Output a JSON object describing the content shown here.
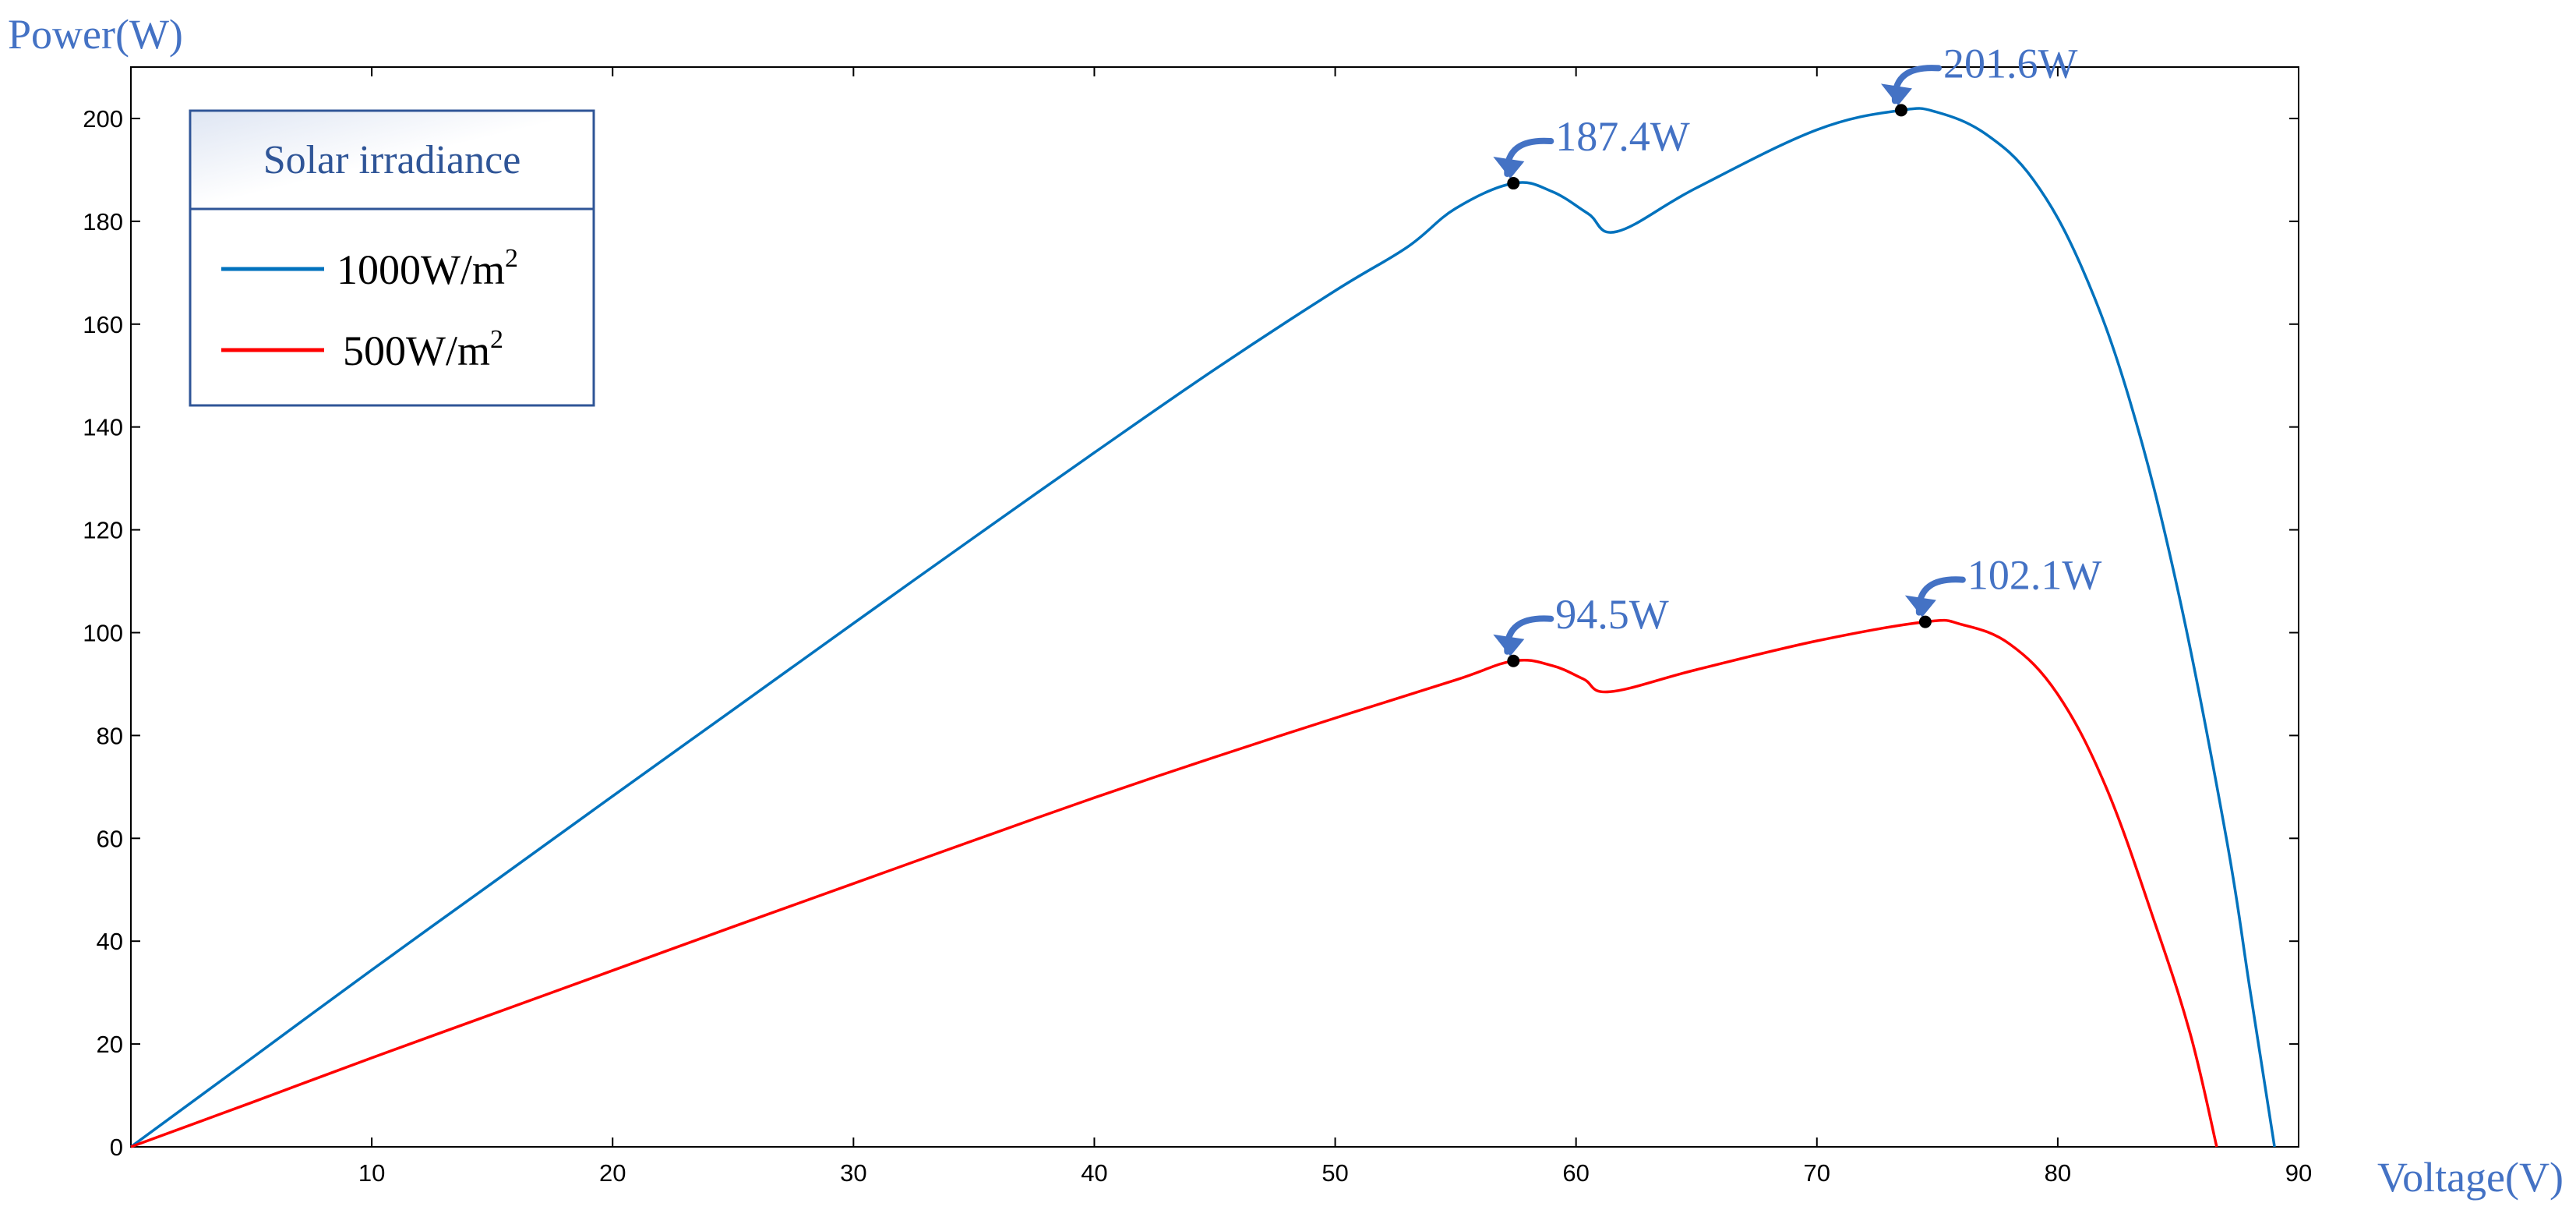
{
  "chart_data": {
    "type": "line",
    "xlabel": "Voltage(V)",
    "ylabel": "Power(W)",
    "xlim": [
      0,
      90
    ],
    "ylim": [
      0,
      210
    ],
    "xticks": [
      10,
      20,
      30,
      40,
      50,
      60,
      70,
      80,
      90
    ],
    "yticks": [
      0,
      20,
      40,
      60,
      80,
      100,
      120,
      140,
      160,
      180,
      200
    ],
    "grid": false,
    "legend": {
      "title": "Solar irradiance",
      "placement": "top-left",
      "entries": [
        {
          "label": "1000W/m",
          "sup": "2"
        },
        {
          "label": "500W/m",
          "sup": "2"
        }
      ]
    },
    "series": [
      {
        "name": "1000W/m2",
        "color": "#0072BD",
        "points": [
          [
            0,
            0
          ],
          [
            5,
            17.2
          ],
          [
            10,
            34.4
          ],
          [
            15,
            51.3
          ],
          [
            20,
            68.2
          ],
          [
            25,
            85
          ],
          [
            30,
            101.8
          ],
          [
            35,
            118.5
          ],
          [
            40,
            135
          ],
          [
            45,
            151.2
          ],
          [
            50,
            166.5
          ],
          [
            53,
            175
          ],
          [
            55,
            182.5
          ],
          [
            57.4,
            187.4
          ],
          [
            59,
            185.8
          ],
          [
            60.5,
            181.5
          ],
          [
            61.7,
            178
          ],
          [
            65,
            186.5
          ],
          [
            70,
            197.8
          ],
          [
            73.5,
            201.6
          ],
          [
            75,
            201.2
          ],
          [
            77,
            197
          ],
          [
            79,
            188
          ],
          [
            81,
            171
          ],
          [
            83,
            145
          ],
          [
            85,
            108
          ],
          [
            87,
            60
          ],
          [
            88,
            30
          ],
          [
            89,
            0
          ]
        ]
      },
      {
        "name": "500W/m2",
        "color": "#FF0000",
        "points": [
          [
            0,
            0
          ],
          [
            5,
            8.6
          ],
          [
            10,
            17.3
          ],
          [
            15,
            25.8
          ],
          [
            20,
            34.3
          ],
          [
            25,
            42.8
          ],
          [
            30,
            51.2
          ],
          [
            35,
            59.6
          ],
          [
            40,
            67.9
          ],
          [
            45,
            75.8
          ],
          [
            50,
            83.4
          ],
          [
            55,
            90.8
          ],
          [
            57.4,
            94.5
          ],
          [
            59,
            93.6
          ],
          [
            60.3,
            91
          ],
          [
            61.4,
            88.5
          ],
          [
            65,
            92.8
          ],
          [
            70,
            98.4
          ],
          [
            74.5,
            102.1
          ],
          [
            76,
            101.6
          ],
          [
            78,
            97.8
          ],
          [
            80,
            88
          ],
          [
            82,
            70
          ],
          [
            84,
            44
          ],
          [
            85.5,
            22
          ],
          [
            86.6,
            0
          ]
        ]
      }
    ],
    "annotations": [
      {
        "label": "187.4W",
        "x": 57.4,
        "y": 187.4,
        "series": 0
      },
      {
        "label": "201.6W",
        "x": 73.5,
        "y": 201.6,
        "series": 0
      },
      {
        "label": "94.5W",
        "x": 57.4,
        "y": 94.5,
        "series": 1
      },
      {
        "label": "102.1W",
        "x": 74.5,
        "y": 102.1,
        "series": 1
      }
    ],
    "annotation_color": "#4472C4"
  }
}
